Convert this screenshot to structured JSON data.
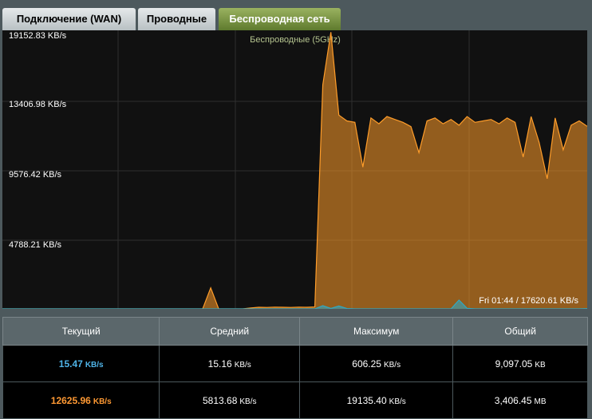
{
  "tabs": [
    "Подключение (WAN)",
    "Проводные",
    "Беспроводная сеть"
  ],
  "graph": {
    "title": "Беспроводные (5GHz)",
    "y_labels": [
      "19152.83 KB/s",
      "13406.98 KB/s",
      "9576.42 KB/s",
      "4788.21 KB/s"
    ],
    "tooltip": "Fri 01:44 / 17620.61 KB/s",
    "ylim": [
      0,
      19152.83
    ],
    "series": [
      {
        "color": "#2fa9c4",
        "values": [
          0,
          0,
          0,
          0,
          0,
          0,
          0,
          0,
          0,
          0,
          0,
          0,
          0,
          0,
          0,
          0,
          0,
          0,
          0,
          0,
          0,
          0,
          0,
          0,
          0,
          0,
          0,
          0,
          0,
          0,
          0,
          0,
          0,
          0,
          0,
          0,
          0,
          0,
          0,
          0,
          220,
          30,
          200,
          20,
          0,
          0,
          0,
          0,
          0,
          0,
          0,
          0,
          0,
          0,
          0,
          0,
          0,
          606.25,
          40,
          0,
          0,
          0,
          0,
          0,
          0,
          0,
          0,
          0,
          0,
          0,
          0,
          0,
          0,
          15.47
        ]
      },
      {
        "color": "#ff9d2a",
        "values": [
          0,
          0,
          0,
          0,
          0,
          0,
          0,
          0,
          0,
          0,
          0,
          0,
          0,
          0,
          0,
          0,
          0,
          0,
          0,
          0,
          0,
          0,
          0,
          0,
          0,
          0,
          1450,
          0,
          0,
          0,
          0,
          60,
          110,
          100,
          120,
          110,
          100,
          120,
          110,
          130,
          15500,
          19135.4,
          13400,
          13000,
          12900,
          9800,
          13200,
          12800,
          13300,
          13100,
          12900,
          12600,
          10800,
          13000,
          13200,
          12800,
          13100,
          12700,
          13300,
          12900,
          13000,
          13100,
          12800,
          13200,
          12900,
          10500,
          13300,
          11500,
          9000,
          13200,
          11000,
          12700,
          13000,
          12625.96
        ]
      }
    ]
  },
  "table": {
    "headers": [
      "Текущий",
      "Средний",
      "Максимум",
      "Общий"
    ],
    "rows": [
      [
        {
          "value": "15.47",
          "unit": "KB/s"
        },
        {
          "value": "15.16",
          "unit": "KB/s"
        },
        {
          "value": "606.25",
          "unit": "KB/s"
        },
        {
          "value": "9,097.05",
          "unit": "KB"
        }
      ],
      [
        {
          "value": "12625.96",
          "unit": "KB/s"
        },
        {
          "value": "5813.68",
          "unit": "KB/s"
        },
        {
          "value": "19135.40",
          "unit": "KB/s"
        },
        {
          "value": "3,406.45",
          "unit": "MB"
        }
      ]
    ]
  }
}
